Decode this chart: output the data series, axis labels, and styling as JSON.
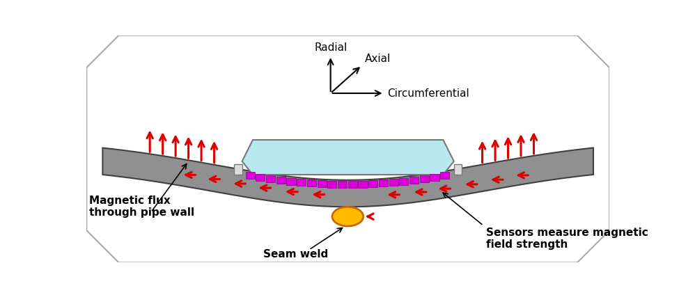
{
  "bg_color": "#ffffff",
  "pipe_color": "#909090",
  "pipe_edge_color": "#404040",
  "magnet_color": "#dd00dd",
  "sensor_color": "#ffbb00",
  "flux_body_color": "#b8e8f0",
  "flux_edge_color": "#777777",
  "arrow_color": "#dd0000",
  "text_color": "#000000",
  "label_fontsize": 11,
  "axis_label_fontsize": 11,
  "labels": {
    "magnetic_flux": "Magnetic flux\nthrough pipe wall",
    "seam_weld": "Seam weld",
    "sensors": "Sensors measure magnetic\nfield strength",
    "radial": "Radial",
    "axial": "Axial",
    "circumferential": "Circumferential"
  }
}
